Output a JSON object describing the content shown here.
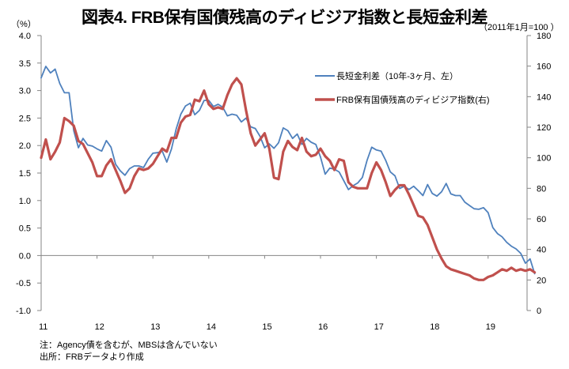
{
  "title": "図表4. FRB保有国債残高のディビジア指数と長短金利差",
  "left_unit": "（%）",
  "right_unit": "（2011年1月=100 ）",
  "notes": {
    "note": "注：Agency債を含むが、MBSは含んでいない",
    "source": "出所：FRBデータより作成"
  },
  "colors": {
    "spread": "#4F81BD",
    "divisia": "#C0504D",
    "axis": "#868686"
  },
  "chart_data": {
    "type": "line",
    "title": "図表4. FRB保有国債残高のディビジア指数と長短金利差",
    "xlabel": "",
    "ylabel": "%",
    "y2label": "2011年1月=100",
    "x_tick_labels": [
      "11",
      "12",
      "13",
      "14",
      "15",
      "16",
      "17",
      "18",
      "19"
    ],
    "x_range_years": [
      2011,
      2019.6
    ],
    "ylim": [
      -1.0,
      4.0
    ],
    "y_ticks": [
      "4.0",
      "3.5",
      "3.0",
      "2.5",
      "2.0",
      "1.5",
      "1.0",
      "0.5",
      "0.0",
      "-0.5",
      "-1.0"
    ],
    "y2lim": [
      0,
      180
    ],
    "y2_ticks": [
      "180",
      "160",
      "140",
      "120",
      "100",
      "80",
      "60",
      "40",
      "20",
      "0"
    ],
    "legend_placement": "top-right",
    "series": [
      {
        "name": "長短金利差（10年-3ヶ月、左）",
        "axis": "left",
        "start": "2011-01",
        "frequency": "monthly",
        "values": [
          3.23,
          3.44,
          3.32,
          3.39,
          3.13,
          2.96,
          2.96,
          2.27,
          1.96,
          2.13,
          2.01,
          1.99,
          1.94,
          1.9,
          2.09,
          1.97,
          1.66,
          1.54,
          1.46,
          1.58,
          1.63,
          1.63,
          1.6,
          1.75,
          1.86,
          1.87,
          1.9,
          1.7,
          1.94,
          2.3,
          2.57,
          2.72,
          2.77,
          2.56,
          2.64,
          2.82,
          2.82,
          2.71,
          2.75,
          2.7,
          2.54,
          2.57,
          2.55,
          2.43,
          2.5,
          2.34,
          2.31,
          2.17,
          1.96,
          2.03,
          1.95,
          2.05,
          2.32,
          2.27,
          2.13,
          2.21,
          2.02,
          2.13,
          2.06,
          2.02,
          1.79,
          1.48,
          1.59,
          1.57,
          1.52,
          1.36,
          1.2,
          1.27,
          1.32,
          1.42,
          1.73,
          1.97,
          1.92,
          1.9,
          1.73,
          1.52,
          1.45,
          1.22,
          1.26,
          1.2,
          1.26,
          1.18,
          1.09,
          1.29,
          1.13,
          1.08,
          1.16,
          1.31,
          1.12,
          1.09,
          1.09,
          0.97,
          0.91,
          0.85,
          0.84,
          0.87,
          0.78,
          0.51,
          0.4,
          0.34,
          0.24,
          0.17,
          0.12,
          0.04,
          -0.14,
          -0.06,
          -0.33
        ]
      },
      {
        "name": "FRB保有国債残高のディビジア指数(右)",
        "axis": "right",
        "start": "2011-01",
        "frequency": "monthly",
        "values": [
          100,
          112,
          99,
          104,
          110,
          126,
          124,
          121,
          111,
          109,
          103,
          97,
          88,
          88,
          95,
          99,
          92,
          85,
          77,
          80,
          88,
          93,
          92,
          93,
          96,
          101,
          106,
          104,
          113,
          113,
          123,
          127,
          128,
          138,
          137,
          144,
          135,
          132,
          133,
          132,
          141,
          148,
          152,
          148,
          131,
          116,
          108,
          112,
          116,
          106,
          87,
          86,
          104,
          111,
          107,
          105,
          113,
          104,
          101,
          102,
          106,
          101,
          98,
          92,
          99,
          98,
          84,
          81,
          80,
          80,
          80,
          90,
          97,
          92,
          84,
          75,
          79,
          82,
          82,
          76,
          69,
          62,
          61,
          56,
          48,
          40,
          34,
          29,
          27,
          26,
          25,
          24,
          23,
          21,
          20,
          20,
          22,
          23,
          25,
          27,
          26,
          28,
          26,
          27,
          26,
          27,
          25
        ]
      }
    ]
  }
}
